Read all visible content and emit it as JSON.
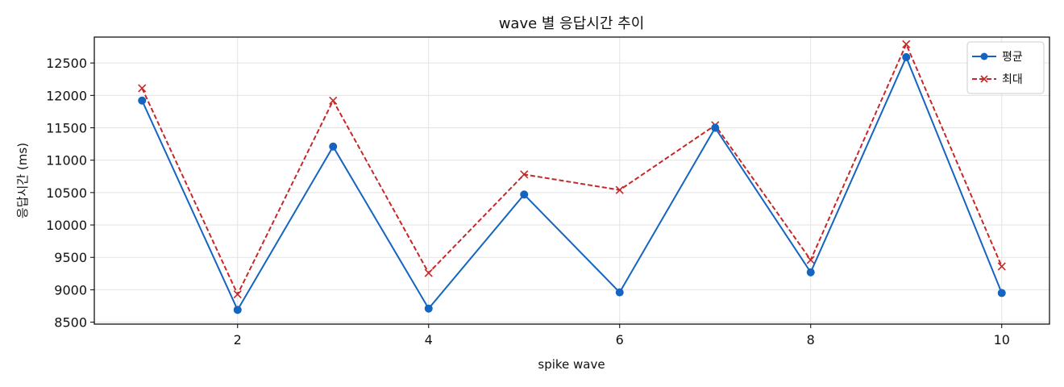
{
  "chart_data": {
    "type": "line",
    "title": "wave 별 응답시간 추이",
    "xlabel": "spike wave",
    "ylabel": "응답시간 (ms)",
    "x": [
      1,
      2,
      3,
      4,
      5,
      6,
      7,
      8,
      9,
      10
    ],
    "xlim": [
      0.5,
      10.5
    ],
    "ylim": [
      8470,
      12900
    ],
    "xticks": [
      2,
      4,
      6,
      8,
      10
    ],
    "yticks": [
      8500,
      9000,
      9500,
      10000,
      10500,
      11000,
      11500,
      12000,
      12500
    ],
    "grid": true,
    "legend_position": "top-right",
    "series": [
      {
        "name": "평균",
        "color": "#1565c0",
        "line_style": "solid",
        "marker": "circle",
        "values": [
          11920,
          8690,
          11210,
          8710,
          10470,
          8960,
          11500,
          9270,
          12590,
          8950
        ]
      },
      {
        "name": "최대",
        "color": "#c62828",
        "line_style": "dashed",
        "marker": "x",
        "values": [
          12110,
          8930,
          11920,
          9260,
          10780,
          10540,
          11540,
          9460,
          12790,
          9360
        ]
      }
    ]
  }
}
